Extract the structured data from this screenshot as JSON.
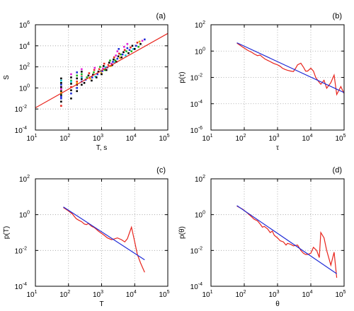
{
  "chart_data": [
    {
      "panel": "(a)",
      "type": "scatter",
      "xlabel": "T, s",
      "ylabel": "S",
      "xscale": "log",
      "yscale": "log",
      "xlim": [
        10,
        100000
      ],
      "ylim": [
        0.0001,
        1000000
      ],
      "xticks": [
        10,
        100,
        1000,
        10000,
        100000
      ],
      "yticks": [
        0.0001,
        0.01,
        1,
        100,
        10000,
        1000000
      ],
      "grid": true,
      "fit_line": {
        "color": "#e8241c",
        "x": [
          10,
          100000
        ],
        "y": [
          0.013,
          150000
        ]
      },
      "scatter_colors": [
        "#000000",
        "#1f2bd6",
        "#e8241c",
        "#18b418",
        "#e021d6",
        "#12c8d8",
        "#f2a600",
        "#7a1fa8"
      ],
      "scatter_points": [
        [
          60,
          0.02,
          2
        ],
        [
          60,
          0.05,
          0
        ],
        [
          60,
          0.1,
          1
        ],
        [
          60,
          0.2,
          0
        ],
        [
          60,
          0.3,
          3
        ],
        [
          60,
          0.5,
          0
        ],
        [
          60,
          0.8,
          4
        ],
        [
          60,
          1.2,
          0
        ],
        [
          60,
          2,
          1
        ],
        [
          60,
          3,
          0
        ],
        [
          60,
          5,
          5
        ],
        [
          60,
          8,
          0
        ],
        [
          60,
          0.15,
          1
        ],
        [
          60,
          0.35,
          6
        ],
        [
          120,
          0.1,
          0
        ],
        [
          120,
          0.3,
          1
        ],
        [
          120,
          0.6,
          0
        ],
        [
          120,
          1.2,
          2
        ],
        [
          120,
          2.5,
          0
        ],
        [
          120,
          5,
          3
        ],
        [
          120,
          10,
          0
        ],
        [
          120,
          20,
          4
        ],
        [
          120,
          4,
          5
        ],
        [
          180,
          0.5,
          0
        ],
        [
          180,
          1,
          1
        ],
        [
          180,
          2,
          0
        ],
        [
          180,
          4,
          2
        ],
        [
          180,
          8,
          0
        ],
        [
          180,
          15,
          3
        ],
        [
          180,
          30,
          1
        ],
        [
          180,
          3,
          6
        ],
        [
          250,
          2,
          0
        ],
        [
          250,
          4,
          1
        ],
        [
          250,
          7,
          0
        ],
        [
          250,
          12,
          2
        ],
        [
          250,
          20,
          3
        ],
        [
          250,
          35,
          0
        ],
        [
          250,
          60,
          4
        ],
        [
          250,
          10,
          5
        ],
        [
          300,
          3,
          0
        ],
        [
          330,
          6,
          1
        ],
        [
          360,
          10,
          3
        ],
        [
          400,
          15,
          0
        ],
        [
          420,
          25,
          2
        ],
        [
          450,
          8,
          6
        ],
        [
          500,
          5,
          0
        ],
        [
          520,
          10,
          1
        ],
        [
          550,
          18,
          0
        ],
        [
          580,
          30,
          3
        ],
        [
          600,
          50,
          2
        ],
        [
          620,
          80,
          4
        ],
        [
          650,
          12,
          5
        ],
        [
          700,
          10,
          0
        ],
        [
          750,
          20,
          1
        ],
        [
          800,
          35,
          0
        ],
        [
          850,
          60,
          2
        ],
        [
          900,
          100,
          3
        ],
        [
          950,
          40,
          5
        ],
        [
          980,
          25,
          6
        ],
        [
          1000,
          20,
          0
        ],
        [
          1050,
          40,
          1
        ],
        [
          1100,
          70,
          4
        ],
        [
          1150,
          120,
          0
        ],
        [
          1200,
          200,
          2
        ],
        [
          1250,
          50,
          3
        ],
        [
          1300,
          90,
          5
        ],
        [
          1400,
          50,
          0
        ],
        [
          1500,
          90,
          1
        ],
        [
          1600,
          150,
          2
        ],
        [
          1700,
          250,
          0
        ],
        [
          1800,
          400,
          3
        ],
        [
          1900,
          120,
          6
        ],
        [
          2000,
          200,
          4
        ],
        [
          2100,
          150,
          0
        ],
        [
          2200,
          300,
          1
        ],
        [
          2300,
          500,
          0
        ],
        [
          2400,
          800,
          2
        ],
        [
          2500,
          250,
          5
        ],
        [
          2600,
          400,
          3
        ],
        [
          2700,
          1200,
          4
        ],
        [
          2800,
          300,
          0
        ],
        [
          3000,
          600,
          1
        ],
        [
          3200,
          1000,
          0
        ],
        [
          3400,
          1800,
          2
        ],
        [
          3600,
          700,
          6
        ],
        [
          3800,
          1500,
          3
        ],
        [
          3000,
          3000,
          4
        ],
        [
          3300,
          5000,
          1
        ],
        [
          4000,
          800,
          0
        ],
        [
          4300,
          1500,
          1
        ],
        [
          4600,
          2500,
          0
        ],
        [
          5000,
          4000,
          2
        ],
        [
          5300,
          1200,
          5
        ],
        [
          5600,
          3000,
          3
        ],
        [
          6000,
          6000,
          1
        ],
        [
          4800,
          8000,
          4
        ],
        [
          6500,
          2000,
          0
        ],
        [
          7000,
          4000,
          1
        ],
        [
          7500,
          7000,
          2
        ],
        [
          8000,
          3000,
          3
        ],
        [
          8500,
          10000,
          0
        ],
        [
          9000,
          5000,
          5
        ],
        [
          6000,
          15000,
          4
        ],
        [
          10000,
          5000,
          0
        ],
        [
          11000,
          10000,
          1
        ],
        [
          12000,
          20000,
          2
        ],
        [
          13000,
          8000,
          3
        ],
        [
          15000,
          15000,
          0
        ],
        [
          17000,
          30000,
          4
        ],
        [
          20000,
          40000,
          1
        ],
        [
          14000,
          25000,
          6
        ]
      ]
    },
    {
      "panel": "(b)",
      "type": "line",
      "xlabel": "τ",
      "ylabel": "p(τ)",
      "xscale": "log",
      "yscale": "log",
      "xlim": [
        10,
        100000
      ],
      "ylim": [
        1e-06,
        100
      ],
      "xticks": [
        10,
        100,
        1000,
        10000,
        100000
      ],
      "yticks": [
        1e-06,
        0.0001,
        0.01,
        1,
        100
      ],
      "grid": true,
      "series": [
        {
          "color": "#e8241c",
          "x": [
            60,
            90,
            130,
            170,
            200,
            250,
            300,
            350,
            420,
            500,
            600,
            700,
            800,
            1000,
            1200,
            1400,
            1700,
            2000,
            2500,
            3000,
            3500,
            4000,
            5000,
            6000,
            7000,
            8000,
            10000,
            12000,
            14000,
            17000,
            20000,
            25000,
            30000,
            40000,
            50000,
            60000,
            80000,
            100000
          ],
          "y": [
            4,
            2,
            1.1,
            0.8,
            0.6,
            0.45,
            0.5,
            0.35,
            0.25,
            0.2,
            0.16,
            0.13,
            0.11,
            0.09,
            0.07,
            0.05,
            0.04,
            0.035,
            0.03,
            0.028,
            0.05,
            0.09,
            0.12,
            0.06,
            0.03,
            0.03,
            0.05,
            0.03,
            0.01,
            0.005,
            0.003,
            0.006,
            0.0015,
            0.004,
            0.015,
            0.0005,
            0.002,
            0.0006
          ]
        },
        {
          "color": "#1f2bd6",
          "x": [
            60,
            100000
          ],
          "y": [
            4.3,
            0.0007
          ]
        }
      ]
    },
    {
      "panel": "(c)",
      "type": "line",
      "xlabel": "T",
      "ylabel": "p(T)",
      "xscale": "log",
      "yscale": "log",
      "xlim": [
        10,
        100000
      ],
      "ylim": [
        0.0001,
        100
      ],
      "xticks": [
        10,
        100,
        1000,
        10000,
        100000
      ],
      "yticks": [
        0.0001,
        0.01,
        1,
        100
      ],
      "grid": true,
      "series": [
        {
          "color": "#e8241c",
          "x": [
            70,
            100,
            130,
            170,
            200,
            250,
            300,
            350,
            400,
            500,
            600,
            700,
            800,
            1000,
            1200,
            1500,
            2000,
            2500,
            3000,
            4000,
            5000,
            6000,
            7000,
            8000,
            10000,
            12000,
            15000,
            20000
          ],
          "y": [
            2.5,
            1.6,
            1.1,
            0.6,
            0.5,
            0.4,
            0.3,
            0.28,
            0.32,
            0.22,
            0.19,
            0.15,
            0.12,
            0.09,
            0.07,
            0.05,
            0.04,
            0.045,
            0.05,
            0.04,
            0.03,
            0.045,
            0.1,
            0.2,
            0.03,
            0.006,
            0.002,
            0.0006
          ]
        },
        {
          "color": "#1f2bd6",
          "x": [
            70,
            20000
          ],
          "y": [
            2.7,
            0.003
          ]
        }
      ]
    },
    {
      "panel": "(d)",
      "type": "line",
      "xlabel": "θ",
      "ylabel": "p(θ)",
      "xscale": "log",
      "yscale": "log",
      "xlim": [
        10,
        100000
      ],
      "ylim": [
        0.0001,
        100
      ],
      "xticks": [
        10,
        100,
        1000,
        10000,
        100000
      ],
      "yticks": [
        0.0001,
        0.01,
        1,
        100
      ],
      "grid": true,
      "series": [
        {
          "color": "#e8241c",
          "x": [
            60,
            90,
            120,
            160,
            200,
            250,
            300,
            350,
            400,
            500,
            600,
            700,
            800,
            1000,
            1200,
            1500,
            1800,
            2000,
            2500,
            3000,
            4000,
            5000,
            6000,
            7000,
            8000,
            10000,
            12000,
            15000,
            18000,
            20000,
            25000,
            30000,
            40000,
            50000,
            60000
          ],
          "y": [
            3,
            2,
            1.3,
            0.8,
            0.55,
            0.45,
            0.3,
            0.2,
            0.22,
            0.16,
            0.1,
            0.12,
            0.07,
            0.05,
            0.035,
            0.03,
            0.02,
            0.025,
            0.022,
            0.018,
            0.02,
            0.01,
            0.007,
            0.006,
            0.006,
            0.007,
            0.015,
            0.01,
            0.004,
            0.1,
            0.05,
            0.01,
            0.0015,
            0.008,
            0.0003
          ]
        },
        {
          "color": "#1f2bd6",
          "x": [
            60,
            60000
          ],
          "y": [
            3.2,
            0.0005
          ]
        }
      ]
    }
  ]
}
